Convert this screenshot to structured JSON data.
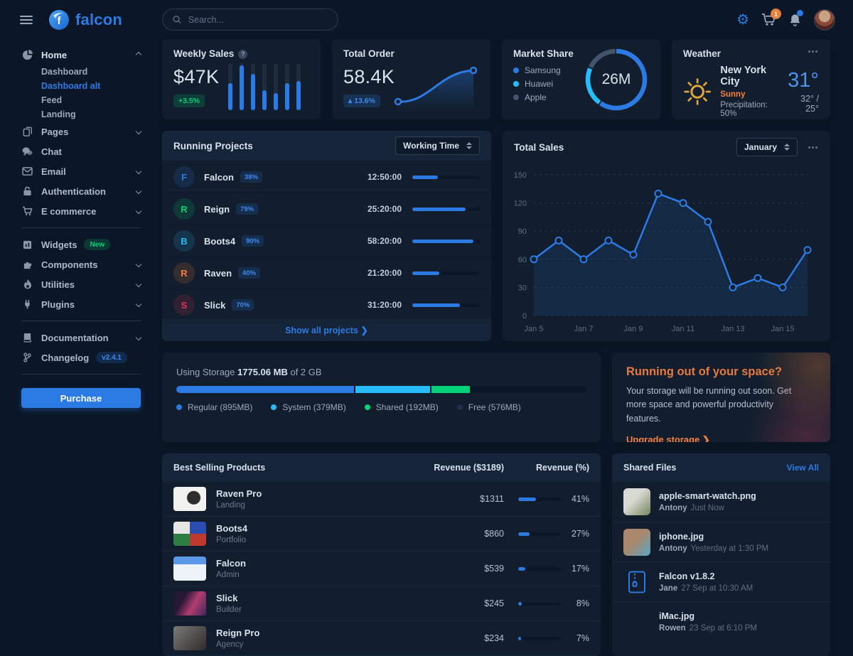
{
  "colors": {
    "primary": "#2c7be5",
    "info": "#27bcfd",
    "success": "#00d27a",
    "warning": "#f5803e",
    "danger": "#e63757"
  },
  "header": {
    "brand": "falcon",
    "search_placeholder": "Search...",
    "cart_badge": "1"
  },
  "sidebar": {
    "home": "Home",
    "dashboard": "Dashboard",
    "dashboard_alt": "Dashboard alt",
    "feed": "Feed",
    "landing": "Landing",
    "pages": "Pages",
    "chat": "Chat",
    "email": "Email",
    "authentication": "Authentication",
    "ecommerce": "E commerce",
    "widgets": "Widgets",
    "widgets_badge": "New",
    "components": "Components",
    "utilities": "Utilities",
    "plugins": "Plugins",
    "documentation": "Documentation",
    "changelog": "Changelog",
    "changelog_badge": "v2.4.1",
    "purchase": "Purchase"
  },
  "weekly_sales": {
    "title": "Weekly Sales",
    "value": "$47K",
    "badge": "+3.5%",
    "bars": [
      58,
      95,
      78,
      42,
      36,
      58,
      62
    ]
  },
  "total_order": {
    "title": "Total Order",
    "value": "58.4K",
    "badge_caret": "▴",
    "badge": "13.6%"
  },
  "market_share": {
    "title": "Market Share",
    "center": "26M",
    "legend": [
      {
        "label": "Samsung",
        "pct": 60,
        "color": "#2c7be5"
      },
      {
        "label": "Huawei",
        "pct": 22,
        "color": "#27bcfd"
      },
      {
        "label": "Apple",
        "pct": 18,
        "color": "#44546d"
      }
    ]
  },
  "weather": {
    "title": "Weather",
    "menu": "⋯",
    "city": "New York City",
    "condition": "Sunny",
    "precipitation": "Precipitation: 50%",
    "temp": "31°",
    "range": "32° / 25°"
  },
  "projects": {
    "title": "Running Projects",
    "filter": "Working Time",
    "footer": "Show all projects ❯",
    "rows": [
      {
        "initial": "F",
        "name": "Falcon",
        "badge": "38%",
        "time": "12:50:00",
        "progress": 38,
        "color": "#2c7be5"
      },
      {
        "initial": "R",
        "name": "Reign",
        "badge": "79%",
        "time": "25:20:00",
        "progress": 79,
        "color": "#00d27a"
      },
      {
        "initial": "B",
        "name": "Boots4",
        "badge": "90%",
        "time": "58:20:00",
        "progress": 90,
        "color": "#27bcfd"
      },
      {
        "initial": "R",
        "name": "Raven",
        "badge": "40%",
        "time": "21:20:00",
        "progress": 40,
        "color": "#f5803e"
      },
      {
        "initial": "S",
        "name": "Slick",
        "badge": "70%",
        "time": "31:20:00",
        "progress": 70,
        "color": "#e63757"
      }
    ]
  },
  "total_sales": {
    "title": "Total Sales",
    "filter": "January",
    "menu": "⋯"
  },
  "chart_data": {
    "type": "line",
    "title": "Total Sales",
    "x": [
      "Jan 5",
      "Jan 6",
      "Jan 7",
      "Jan 8",
      "Jan 9",
      "Jan 10",
      "Jan 11",
      "Jan 12",
      "Jan 13",
      "Jan 14",
      "Jan 15",
      "Jan 16"
    ],
    "values": [
      60,
      80,
      60,
      80,
      65,
      130,
      120,
      100,
      30,
      40,
      30,
      70
    ],
    "ylim": [
      0,
      150
    ],
    "yticks": [
      0,
      30,
      60,
      90,
      120,
      150
    ],
    "xtick_labels": [
      "Jan 5",
      "Jan 7",
      "Jan 9",
      "Jan 11",
      "Jan 13",
      "Jan 15"
    ],
    "grid": "horizontal-dashed",
    "legend": "none"
  },
  "storage": {
    "prefix": "Using Storage",
    "used": "1775.06 MB",
    "suffix": "of 2 GB",
    "segments": [
      {
        "label": "Regular (895MB)",
        "pct": 43.7,
        "color": "#2c7be5"
      },
      {
        "label": "System (379MB)",
        "pct": 18.5,
        "color": "#27bcfd"
      },
      {
        "label": "Shared (192MB)",
        "pct": 9.4,
        "color": "#00d27a"
      },
      {
        "label": "Free (576MB)",
        "pct": 28.4,
        "color": "#0a1625"
      }
    ]
  },
  "space": {
    "title": "Running out of your space?",
    "body": "Your storage will be running out soon. Get more space and powerful productivity features.",
    "link": "Upgrade storage ❯"
  },
  "products": {
    "title": "Best Selling Products",
    "col_revenue": "Revenue ($3189)",
    "col_percent": "Revenue (%)",
    "rows": [
      {
        "name": "Raven Pro",
        "category": "Landing",
        "price": "$1311",
        "pct": 41,
        "pct_label": "41%"
      },
      {
        "name": "Boots4",
        "category": "Portfolio",
        "price": "$860",
        "pct": 27,
        "pct_label": "27%"
      },
      {
        "name": "Falcon",
        "category": "Admin",
        "price": "$539",
        "pct": 17,
        "pct_label": "17%"
      },
      {
        "name": "Slick",
        "category": "Builder",
        "price": "$245",
        "pct": 8,
        "pct_label": "8%"
      },
      {
        "name": "Reign Pro",
        "category": "Agency",
        "price": "$234",
        "pct": 7,
        "pct_label": "7%"
      }
    ]
  },
  "files": {
    "title": "Shared Files",
    "view_all": "View All",
    "rows": [
      {
        "name": "apple-smart-watch.png",
        "author": "Antony",
        "time": "Just Now"
      },
      {
        "name": "iphone.jpg",
        "author": "Antony",
        "time": "Yesterday at 1:30 PM"
      },
      {
        "name": "Falcon v1.8.2",
        "author": "Jane",
        "time": "27 Sep at 10:30 AM"
      },
      {
        "name": "iMac.jpg",
        "author": "Rowen",
        "time": "23 Sep at 6:10 PM"
      }
    ]
  }
}
